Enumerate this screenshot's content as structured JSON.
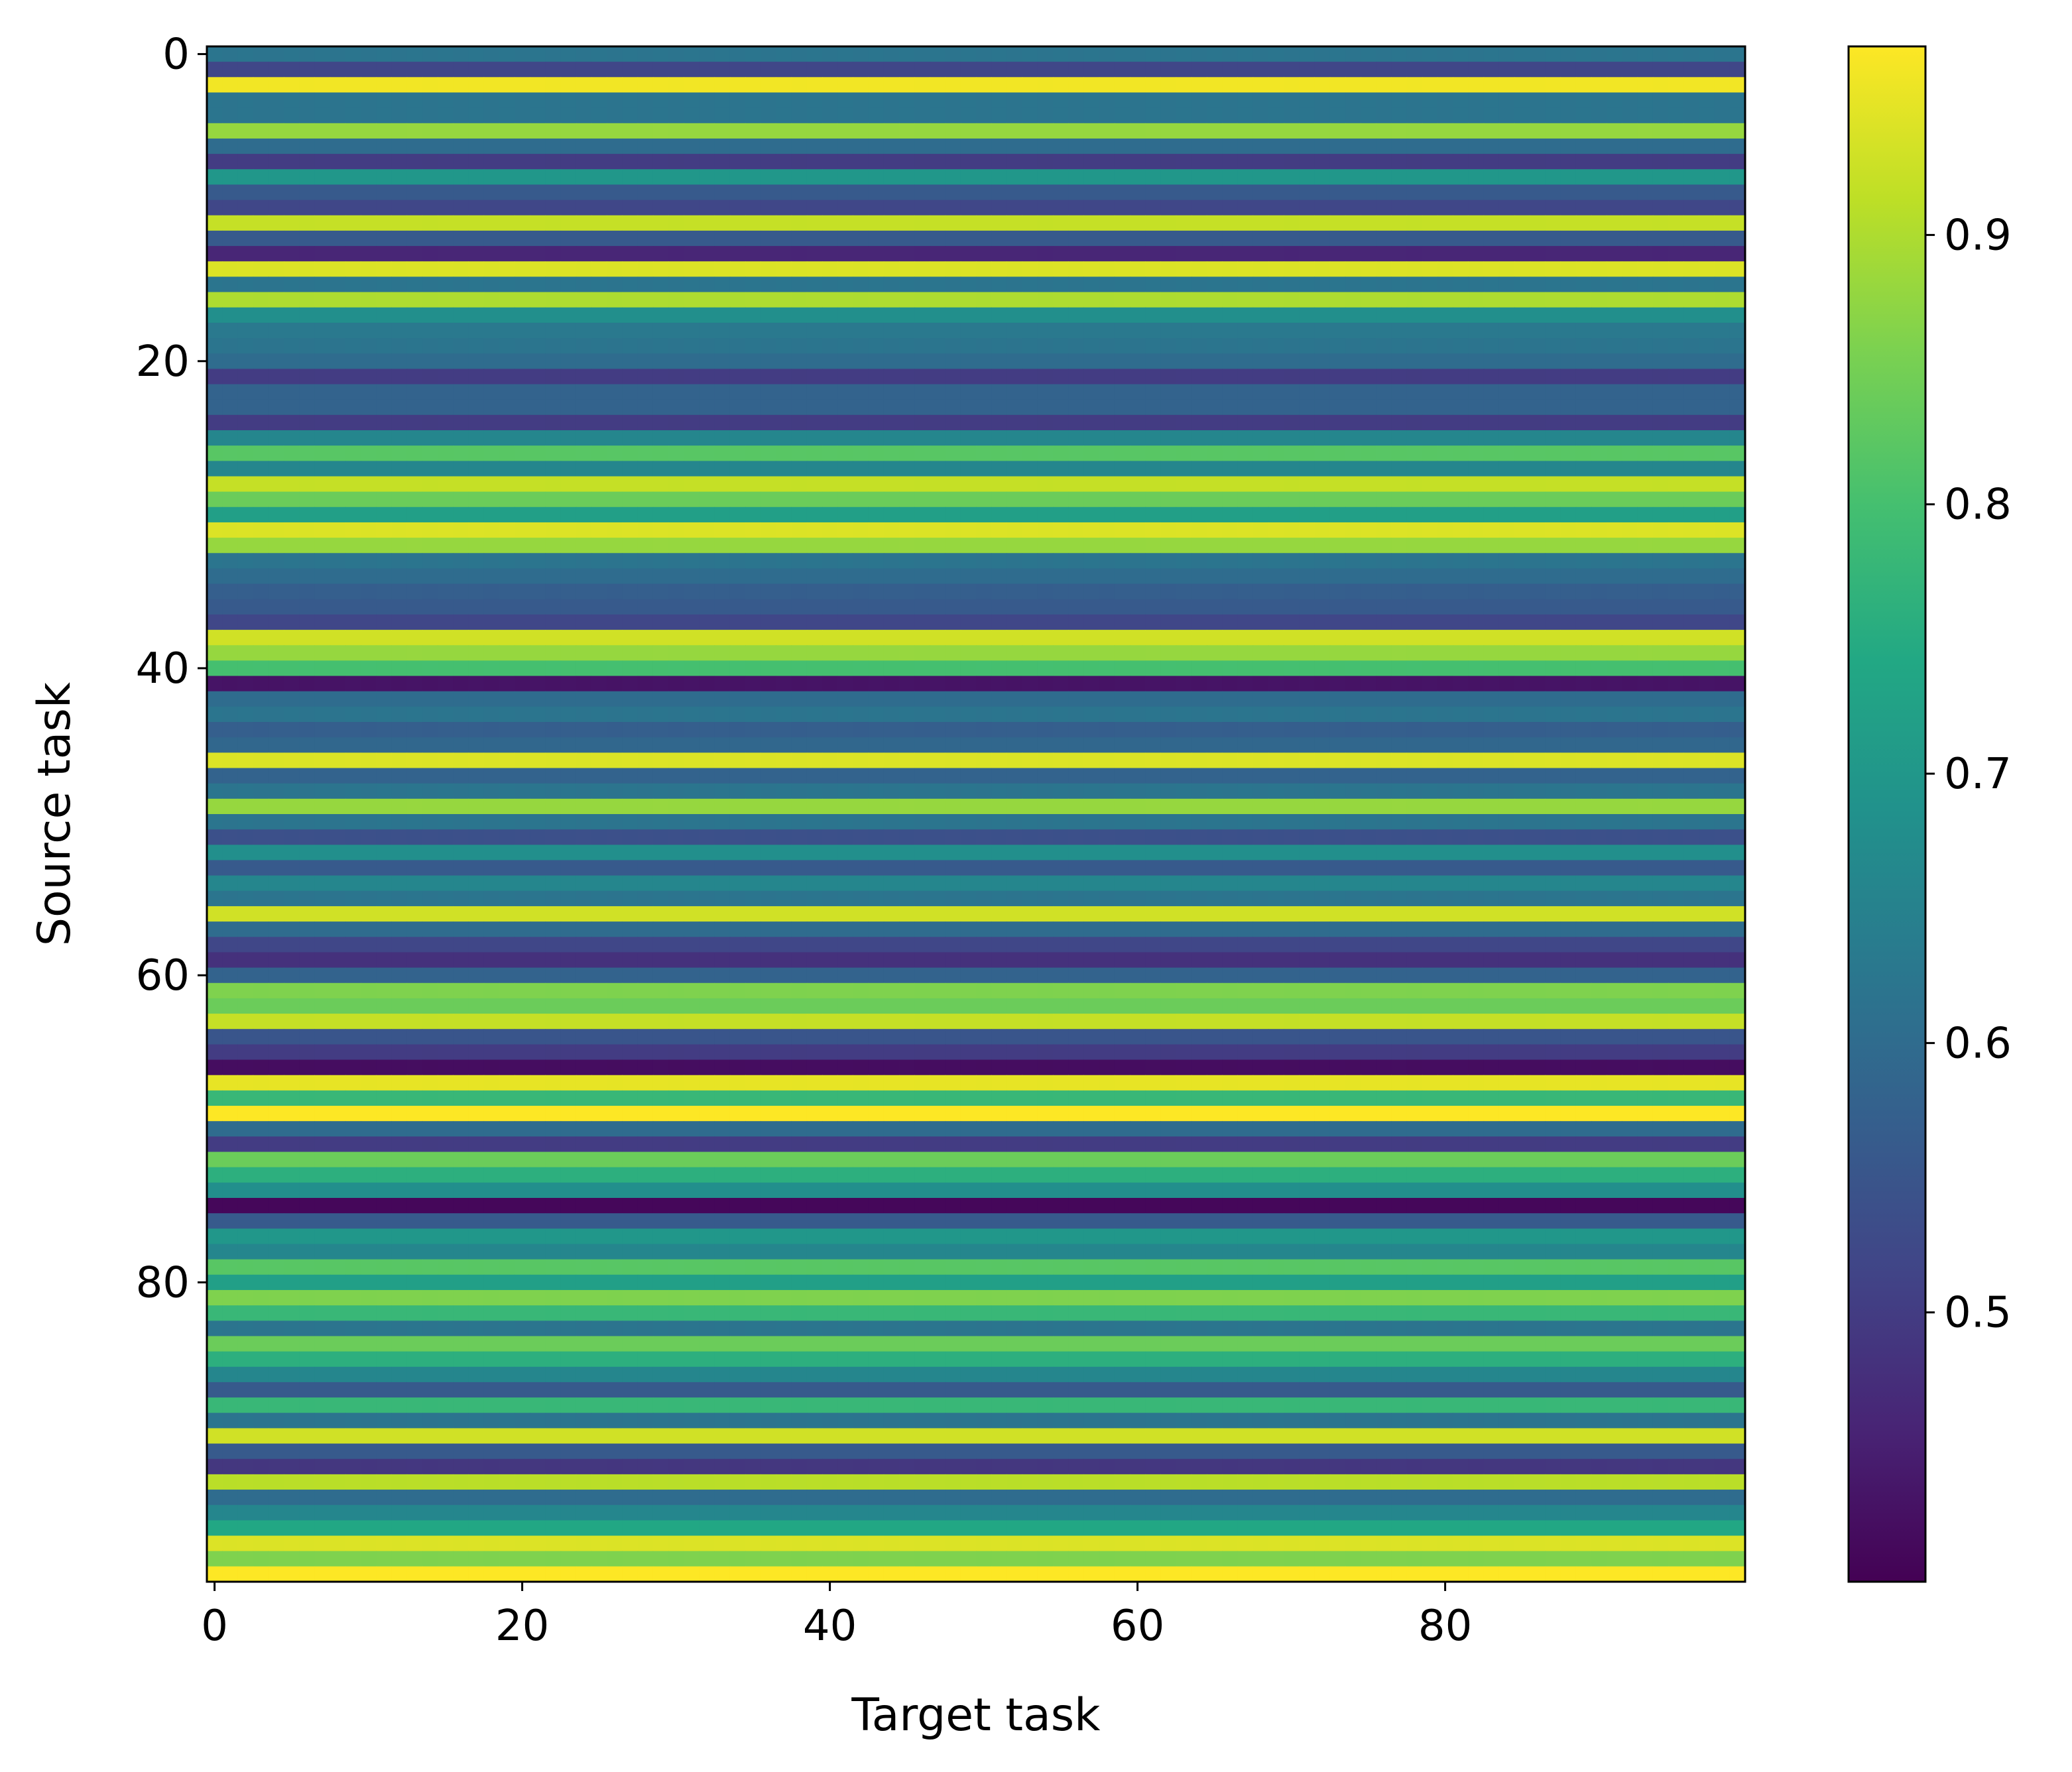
{
  "chart_data": {
    "type": "heatmap",
    "xlabel": "Target task",
    "ylabel": "Source task",
    "x_ticks": [
      0,
      20,
      40,
      60,
      80
    ],
    "y_ticks": [
      0,
      20,
      40,
      60,
      80
    ],
    "n_rows": 100,
    "n_cols": 100,
    "colormap": "viridis",
    "colorbar": {
      "range": [
        0.4,
        0.97
      ],
      "ticks": [
        0.5,
        0.6,
        0.7,
        0.8,
        0.9
      ],
      "tick_labels": [
        "0.5",
        "0.6",
        "0.7",
        "0.8",
        "0.9"
      ]
    },
    "row_values": [
      0.62,
      0.52,
      0.96,
      0.62,
      0.62,
      0.88,
      0.6,
      0.5,
      0.7,
      0.56,
      0.52,
      0.92,
      0.56,
      0.46,
      0.94,
      0.62,
      0.9,
      0.68,
      0.63,
      0.62,
      0.6,
      0.5,
      0.58,
      0.58,
      0.5,
      0.66,
      0.82,
      0.66,
      0.92,
      0.84,
      0.72,
      0.94,
      0.88,
      0.62,
      0.6,
      0.57,
      0.56,
      0.52,
      0.93,
      0.88,
      0.8,
      0.43,
      0.6,
      0.62,
      0.57,
      0.59,
      0.94,
      0.58,
      0.62,
      0.88,
      0.62,
      0.54,
      0.68,
      0.56,
      0.66,
      0.62,
      0.93,
      0.6,
      0.52,
      0.48,
      0.58,
      0.86,
      0.84,
      0.92,
      0.55,
      0.5,
      0.42,
      0.95,
      0.78,
      0.97,
      0.6,
      0.5,
      0.84,
      0.76,
      0.68,
      0.41,
      0.56,
      0.7,
      0.66,
      0.82,
      0.72,
      0.86,
      0.78,
      0.62,
      0.84,
      0.76,
      0.66,
      0.56,
      0.78,
      0.62,
      0.93,
      0.56,
      0.49,
      0.91,
      0.6,
      0.66,
      0.74,
      0.94,
      0.86,
      0.97
    ],
    "col_values": [
      0.62,
      0.6,
      0.62,
      0.58,
      0.6,
      0.62,
      0.57,
      0.62,
      0.6,
      0.62,
      0.58,
      0.62,
      0.6,
      0.63,
      0.57,
      0.62,
      0.6,
      0.62,
      0.58,
      0.62,
      0.6,
      0.62,
      0.57,
      0.62,
      0.6,
      0.62,
      0.58,
      0.62,
      0.6,
      0.63,
      0.57,
      0.62,
      0.6,
      0.62,
      0.58,
      0.62,
      0.6,
      0.62,
      0.57,
      0.62,
      0.6,
      0.62,
      0.58,
      0.62,
      0.6,
      0.63,
      0.57,
      0.62,
      0.6,
      0.62,
      0.58,
      0.62,
      0.6,
      0.62,
      0.57,
      0.62,
      0.6,
      0.62,
      0.58,
      0.62,
      0.6,
      0.63,
      0.57,
      0.62,
      0.6,
      0.62,
      0.58,
      0.62,
      0.6,
      0.62,
      0.57,
      0.62,
      0.6,
      0.62,
      0.58,
      0.62,
      0.6,
      0.63,
      0.57,
      0.62,
      0.6,
      0.62,
      0.58,
      0.62,
      0.6,
      0.62,
      0.57,
      0.62,
      0.6,
      0.62,
      0.58,
      0.62,
      0.6,
      0.63,
      0.57,
      0.62,
      0.6,
      0.62,
      0.58,
      0.62
    ],
    "col_weight": 0.012
  }
}
